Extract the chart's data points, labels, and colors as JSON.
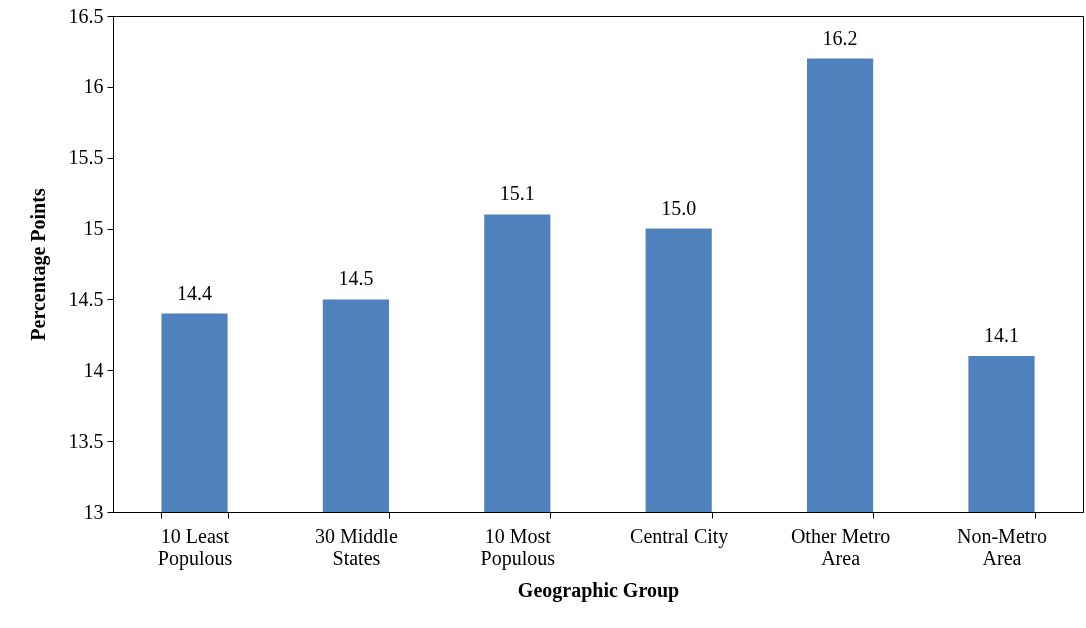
{
  "chart_data": {
    "type": "bar",
    "xlabel": "Geographic Group",
    "ylabel": "Percentage Points",
    "categories": [
      "10 Least Populous",
      "30 Middle States",
      "10 Most Populous",
      "Central City",
      "Other Metro Area",
      "Non-Metro Area"
    ],
    "values": [
      14.4,
      14.5,
      15.1,
      15.0,
      16.2,
      14.1
    ],
    "value_labels": [
      "14.4",
      "14.5",
      "15.1",
      "15.0",
      "16.2",
      "14.1"
    ],
    "color": "#4f81bd",
    "ylim": [
      13,
      16.5
    ],
    "yticks": [
      13,
      13.5,
      14,
      14.5,
      15,
      15.5,
      16,
      16.5
    ],
    "grid": false
  }
}
